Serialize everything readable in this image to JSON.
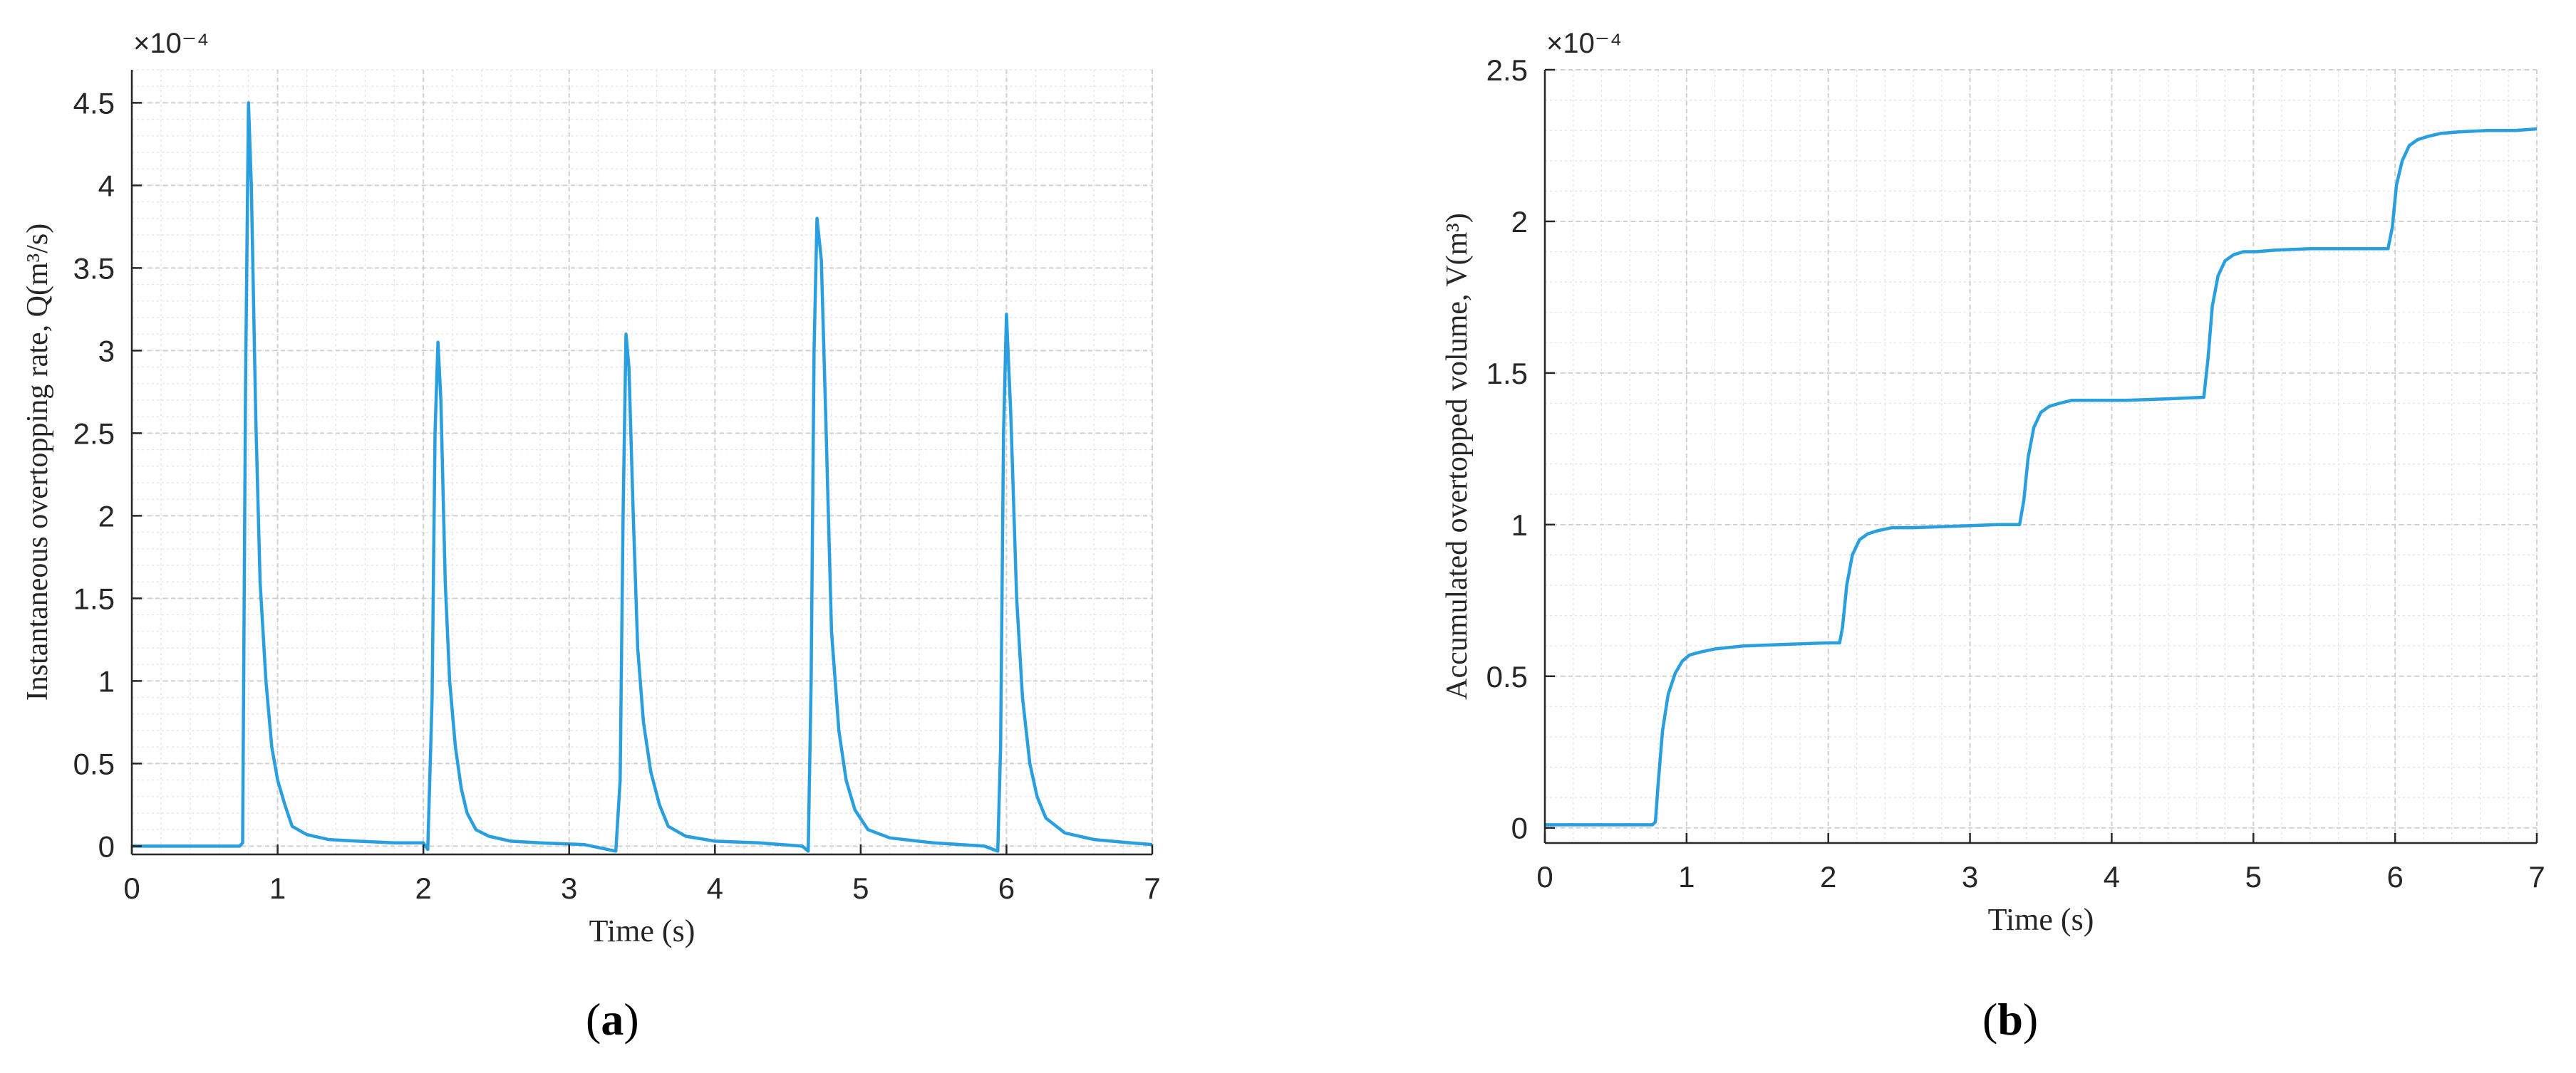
{
  "colors": {
    "series": "#2a9fe0",
    "grid": "#e2e2e2",
    "axis": "#262626",
    "background": "#ffffff"
  },
  "chart_data": [
    {
      "type": "line",
      "panel_label": "a",
      "xlabel": "Time (s)",
      "ylabel": "Instantaneous overtopping rate, Q(m³/s)",
      "y_exponent_label": "×10⁻⁴",
      "y_scale_note": "values in units of 1e-4 m³/s",
      "xlim": [
        0,
        7
      ],
      "ylim": [
        -0.05,
        4.7
      ],
      "xticks": [
        0,
        1,
        2,
        3,
        4,
        5,
        6,
        7
      ],
      "yticks": [
        0,
        0.5,
        1,
        1.5,
        2,
        2.5,
        3,
        3.5,
        4,
        4.5
      ],
      "grid": true,
      "minor_grid": true,
      "series": [
        {
          "x": [
            0,
            0.74,
            0.76,
            0.78,
            0.8,
            0.82,
            0.85,
            0.88,
            0.92,
            0.96,
            1.0,
            1.05,
            1.1,
            1.2,
            1.35,
            1.55,
            1.8,
            2.0,
            2.03,
            2.06,
            2.08,
            2.1,
            2.12,
            2.15,
            2.18,
            2.22,
            2.26,
            2.3,
            2.36,
            2.45,
            2.6,
            2.8,
            3.1,
            3.32,
            3.35,
            3.37,
            3.39,
            3.41,
            3.44,
            3.47,
            3.51,
            3.56,
            3.62,
            3.68,
            3.8,
            4.0,
            4.3,
            4.6,
            4.64,
            4.66,
            4.68,
            4.7,
            4.73,
            4.76,
            4.8,
            4.85,
            4.9,
            4.96,
            5.05,
            5.2,
            5.5,
            5.85,
            5.94,
            5.96,
            5.98,
            6.0,
            6.03,
            6.07,
            6.11,
            6.16,
            6.21,
            6.27,
            6.4,
            6.6,
            6.85,
            7.0
          ],
          "y": [
            0,
            0,
            0.02,
            2.8,
            4.5,
            4.0,
            2.6,
            1.6,
            1.0,
            0.6,
            0.4,
            0.25,
            0.12,
            0.07,
            0.04,
            0.03,
            0.02,
            0.02,
            -0.02,
            0.9,
            2.5,
            3.05,
            2.7,
            1.6,
            1.0,
            0.6,
            0.35,
            0.2,
            0.1,
            0.06,
            0.03,
            0.02,
            0.01,
            -0.03,
            0.4,
            2.0,
            3.1,
            2.9,
            2.0,
            1.2,
            0.75,
            0.45,
            0.25,
            0.12,
            0.06,
            0.03,
            0.02,
            0,
            -0.03,
            1.0,
            3.0,
            3.8,
            3.55,
            2.6,
            1.3,
            0.7,
            0.4,
            0.22,
            0.1,
            0.05,
            0.02,
            0,
            -0.03,
            0.6,
            2.5,
            3.22,
            2.6,
            1.5,
            0.9,
            0.5,
            0.3,
            0.17,
            0.08,
            0.04,
            0.02,
            0.01
          ]
        }
      ]
    },
    {
      "type": "line",
      "panel_label": "b",
      "xlabel": "Time (s)",
      "ylabel": "Accumulated overtopped volume, V(m³)",
      "y_exponent_label": "×10⁻⁴",
      "y_scale_note": "values in units of 1e-4 m³",
      "xlim": [
        0,
        7
      ],
      "ylim": [
        -0.05,
        2.5
      ],
      "xticks": [
        0,
        1,
        2,
        3,
        4,
        5,
        6,
        7
      ],
      "yticks": [
        0,
        0.5,
        1,
        1.5,
        2,
        2.5
      ],
      "grid": true,
      "minor_grid": true,
      "series": [
        {
          "x": [
            0,
            0.76,
            0.78,
            0.8,
            0.83,
            0.87,
            0.92,
            0.97,
            1.02,
            1.1,
            1.2,
            1.4,
            1.7,
            2.0,
            2.08,
            2.1,
            2.13,
            2.17,
            2.22,
            2.28,
            2.35,
            2.45,
            2.6,
            2.9,
            3.2,
            3.35,
            3.38,
            3.41,
            3.45,
            3.5,
            3.56,
            3.63,
            3.72,
            3.85,
            4.1,
            4.4,
            4.65,
            4.68,
            4.71,
            4.75,
            4.8,
            4.86,
            4.93,
            5.02,
            5.15,
            5.4,
            5.7,
            5.95,
            5.98,
            6.01,
            6.05,
            6.1,
            6.16,
            6.23,
            6.32,
            6.45,
            6.65,
            6.85,
            7.0
          ],
          "y": [
            0.01,
            0.01,
            0.02,
            0.15,
            0.32,
            0.44,
            0.51,
            0.55,
            0.57,
            0.58,
            0.59,
            0.6,
            0.605,
            0.61,
            0.61,
            0.66,
            0.8,
            0.9,
            0.95,
            0.97,
            0.98,
            0.99,
            0.99,
            0.995,
            1.0,
            1.0,
            1.08,
            1.22,
            1.32,
            1.37,
            1.39,
            1.4,
            1.41,
            1.41,
            1.41,
            1.415,
            1.42,
            1.55,
            1.72,
            1.82,
            1.87,
            1.89,
            1.9,
            1.9,
            1.905,
            1.91,
            1.91,
            1.91,
            1.98,
            2.12,
            2.2,
            2.25,
            2.27,
            2.28,
            2.29,
            2.295,
            2.3,
            2.3,
            2.305
          ]
        }
      ]
    }
  ]
}
